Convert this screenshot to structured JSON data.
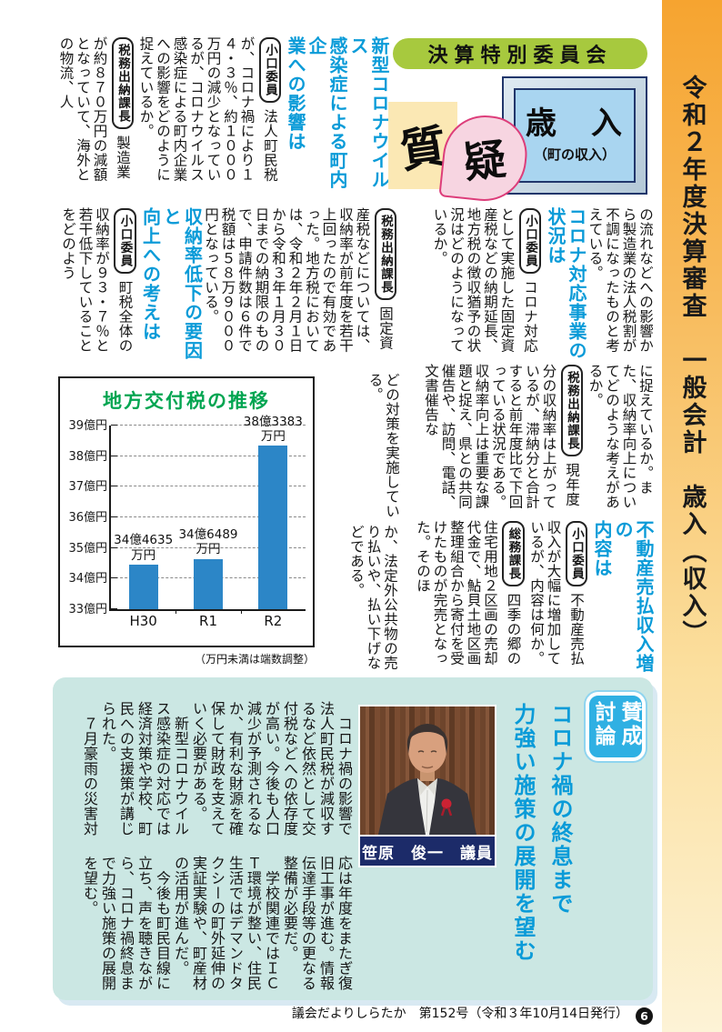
{
  "sidebar": {
    "title": "令和２年度決算審査　一般会計　歳入（収入）"
  },
  "header": {
    "committee": "決算特別委員会",
    "q_badge": "質",
    "g_badge": "疑",
    "box_title": "歳　入",
    "box_subtitle": "（町の収入）"
  },
  "labels": {
    "koguchi": "小口委員",
    "zeimu": "税務出納課長",
    "soumu": "総務課長"
  },
  "articles": {
    "a1_headline": "新型コロナウイルス\n感染症による町内企\n業への影響は",
    "a1_q": "法人町民税が、コロナ禍により１４・３％、約１０００万円の減少となっているが、コロナウイルス感染症による町内企業への影響をどのように捉えているか。",
    "a1_a": "製造業が約８７０万円の減額となっていて、海外との物流、人",
    "r1_lead": "の流れなどへの影響から製造業の法人税割が不調になったものと考えている。",
    "r1_headline": "コロナ対応事業の\n状況は",
    "r1_q": "コロナ対応として実施した固定資産税などの納期延長、地方税の徴収猶予の状況はどのようになっているか。",
    "a2_a": "固定資産税などについては、収納率が前年度を若干上回ったので有効であった。地方税においては、令和２年２月１日から令和３年１月３０日までの納期限のもので、申請件数は６件で税額は５８万９０００円となっている。",
    "a2_headline": "収納率低下の要因と\n向上への考えは",
    "a2_q": "町税全体の収納率が９３・７％と若干低下していることをどのよう",
    "r2_lead": "に捉えているか。また、収納率向上についてどのような考えがあるか。",
    "r2_a": "現年度分の収納率は上がっているが、滞納分と合計すると前年度比で下回っている状況である。収納率向上は重要な課題と捉え、県との共同催告や、訪問、電話、文書催告な",
    "m2": "どの対策を実施している。",
    "r3_headline": "不動産売払収入増の\n内容は",
    "r3_q": "不動産売払収入が大幅に増加しているが、内容は何か。",
    "r3_a": "四季の郷の住宅用地２区画の売却代金で、鮎貝土地区画整理組合から寄付を受けたものが完売となった。そのほ",
    "m3": "か、法定外公共物の売り払いや、払い下げなどである。"
  },
  "chart_data": {
    "type": "bar",
    "title": "地方交付税の推移",
    "categories": [
      "H30",
      "R1",
      "R2"
    ],
    "values": [
      344635,
      346489,
      383383
    ],
    "unit": "万円",
    "value_labels": [
      "34億4635\n万円",
      "34億6489\n万円",
      "38億3383\n万円"
    ],
    "ylim": [
      330000,
      390000
    ],
    "y_ticks": [
      {
        "value": 330000,
        "label": "33億円"
      },
      {
        "value": 340000,
        "label": "34億円"
      },
      {
        "value": 350000,
        "label": "35億円"
      },
      {
        "value": 360000,
        "label": "36億円"
      },
      {
        "value": 370000,
        "label": "37億円"
      },
      {
        "value": 380000,
        "label": "38億円"
      },
      {
        "value": 390000,
        "label": "39億円"
      }
    ],
    "note": "（万円未満は端数調整）",
    "bar_color": "#2c86c7",
    "title_color": "#00a551"
  },
  "discussion": {
    "badge": "賛成討論",
    "headline": "コロナ禍の終息まで\n力強い施策の展開を望む",
    "caption": "笹原　俊一　議員",
    "p1": "　コロナ禍の影響で法人町民税が減収するなど依然として交付税などへの依存度が高い。今後も人口減少が予測されるなか、有利な財源を確保して財政を支えていく必要がある。\n　新型コロナウイルス感染症の対応では経済対策や学校、町民への支援策が講じられた。\n　７月豪雨の災害対",
    "p2": "応は年度をまたぎ復旧工事が進む。情報伝達手段等の更なる整備が必要だ。\n　学校関連ではＩＣＴ環境が整い、住民生活ではデマンドタクシーの町外延伸の実証実験や、町産材の活用が進んだ。\n　今後も町民目線に立ち、声を聴きながら、コロナ禍終息まで力強い施策の展開を望む。"
  },
  "footer": {
    "text": "議会だよりしらたか　第152号（令和３年10月14日発行）",
    "page": "6"
  }
}
